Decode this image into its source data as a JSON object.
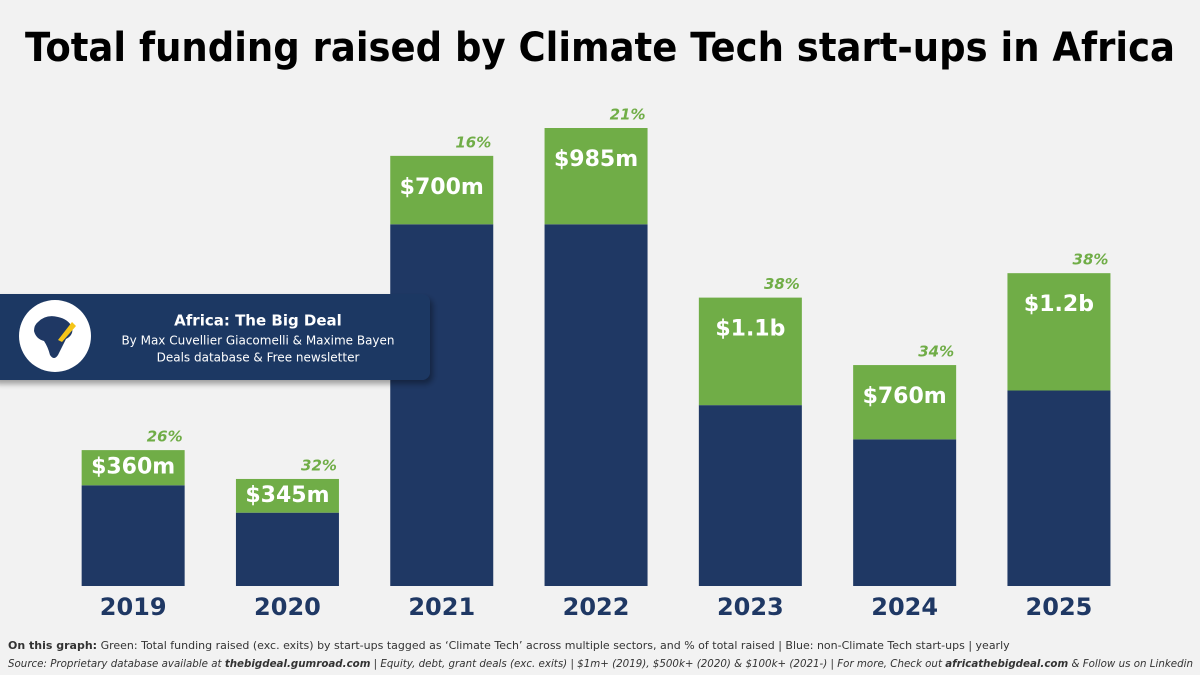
{
  "chart_data": {
    "type": "stacked_bar",
    "title": "Total funding raised by Climate Tech start-ups in Africa",
    "categories": [
      "2019",
      "2020",
      "2021",
      "2022",
      "2023",
      "2024",
      "2025"
    ],
    "series": [
      {
        "color": "#1f3864",
        "values": [
          1030,
          750,
          3700,
          3700,
          1850,
          1500,
          2000
        ]
      },
      {
        "color": "#70ad47",
        "values": [
          360,
          345,
          700,
          985,
          1100,
          760,
          1200
        ],
        "value_labels": [
          "$360m",
          "$345m",
          "$700m",
          "$985m",
          "$1.1b",
          "$760m",
          "$1.2b"
        ]
      }
    ],
    "shares": {
      "values": [
        26,
        32,
        16,
        21,
        38,
        34,
        38
      ],
      "value_labels": [
        "26%",
        "32%",
        "16%",
        "21%",
        "38%",
        "34%",
        "38%"
      ]
    },
    "badge": {
      "title": "Africa: The Big Deal",
      "line1": "By Max Cuvellier Giacomelli & Maxime Bayen",
      "line2": "Deals database & Free newsletter"
    },
    "note": {
      "label": "On this graph:",
      "text": " Green: Total funding raised (exc. exits) by start-ups tagged as ‘Climate Tech’ across multiple sectors, and % of total raised | Blue: non-Climate Tech start-ups | yearly"
    },
    "source": [
      "Source: Proprietary database available at ",
      "thebigdeal.gumroad.com",
      " | Equity, debt, grant deals (exc. exits) | $1m+ (2019), $500k+ (2020) & $100k+ (2021-) | For more, Check out ",
      "africathebigdeal.com",
      " & Follow us on Linkedin"
    ]
  }
}
